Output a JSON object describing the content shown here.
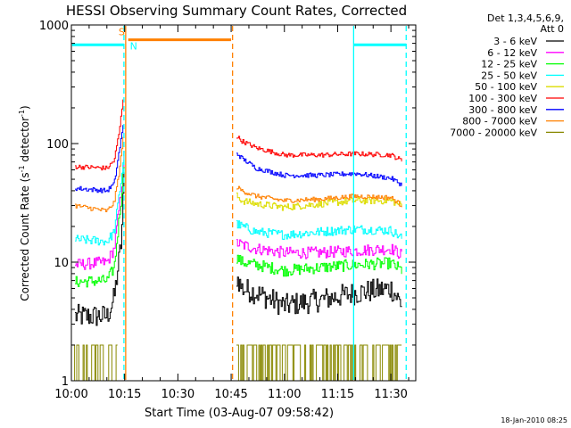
{
  "chart_data": {
    "type": "line",
    "title": "HESSI Observing Summary Count Rates, Corrected",
    "xlabel": "Start Time (03-Aug-07 09:58:42)",
    "ylabel": "Corrected Count Rate (s",
    "ylabel_sup1": "-1",
    "ylabel_mid": " detector",
    "ylabel_sup2": "-1",
    "ylabel_end": ")",
    "x_scale": "time (minutes since 10:00)",
    "xlim": [
      0,
      97
    ],
    "y_scale": "log",
    "ylim": [
      1,
      1000
    ],
    "x_ticks": [
      {
        "v": 0,
        "label": "10:00"
      },
      {
        "v": 15,
        "label": "10:15"
      },
      {
        "v": 30,
        "label": "10:30"
      },
      {
        "v": 45,
        "label": "10:45"
      },
      {
        "v": 60,
        "label": "11:00"
      },
      {
        "v": 75,
        "label": "11:15"
      },
      {
        "v": 90,
        "label": "11:30"
      }
    ],
    "y_ticks": [
      {
        "v": 1,
        "label": "1"
      },
      {
        "v": 10,
        "label": "10"
      },
      {
        "v": 100,
        "label": "100"
      },
      {
        "v": 1000,
        "label": "1000"
      }
    ],
    "legend": {
      "placement": "right",
      "header1": "Det 1,3,4,5,6,9,",
      "header2": "Att 0",
      "entries": [
        {
          "label": "3 - 6 keV",
          "color": "#000000"
        },
        {
          "label": "6 - 12 keV",
          "color": "#ff00ff"
        },
        {
          "label": "12 - 25 keV",
          "color": "#00ff00"
        },
        {
          "label": "25 - 50 keV",
          "color": "#00ffff"
        },
        {
          "label": "50 - 100 keV",
          "color": "#dddd00"
        },
        {
          "label": "100 - 300 keV",
          "color": "#ff0000"
        },
        {
          "label": "300 - 800 keV",
          "color": "#0000ff"
        },
        {
          "label": "800 - 7000 keV",
          "color": "#ff8000"
        },
        {
          "label": "7000 - 20000 keV",
          "color": "#888800"
        }
      ]
    },
    "series": [
      {
        "name": "3 - 6 keV",
        "color": "#000000",
        "jitter": 0.1,
        "segments": [
          {
            "x": [
              1,
              10,
              12,
              14,
              15
            ],
            "y": [
              3.5,
              3.5,
              5,
              15,
              70
            ]
          },
          {
            "x": [
              46.5,
              48,
              52,
              60,
              70,
              80,
              90,
              93
            ],
            "y": [
              7.5,
              6,
              5.5,
              4.3,
              4.8,
              5.5,
              6,
              4.4
            ]
          }
        ]
      },
      {
        "name": "6 - 12 keV",
        "color": "#ff00ff",
        "jitter": 0.05,
        "segments": [
          {
            "x": [
              1,
              10,
              12,
              14,
              15
            ],
            "y": [
              9.5,
              10,
              13,
              40,
              90
            ]
          },
          {
            "x": [
              46.5,
              48,
              52,
              60,
              70,
              80,
              90,
              93
            ],
            "y": [
              14.5,
              14,
              13,
              12,
              12,
              12.5,
              13,
              11.5
            ]
          }
        ]
      },
      {
        "name": "12 - 25 keV",
        "color": "#00ff00",
        "jitter": 0.05,
        "segments": [
          {
            "x": [
              1,
              10,
              12,
              14,
              15
            ],
            "y": [
              6.8,
              7,
              9,
              35,
              80
            ]
          },
          {
            "x": [
              46.5,
              48,
              52,
              60,
              70,
              80,
              90,
              93
            ],
            "y": [
              11,
              10,
              9.5,
              8.5,
              9,
              9.5,
              9.8,
              8.5
            ]
          }
        ]
      },
      {
        "name": "25 - 50 keV",
        "color": "#00ffff",
        "jitter": 0.04,
        "segments": [
          {
            "x": [
              1,
              10,
              12,
              14,
              15
            ],
            "y": [
              15.5,
              15,
              18,
              50,
              100
            ]
          },
          {
            "x": [
              46.5,
              48,
              52,
              60,
              70,
              80,
              90,
              93
            ],
            "y": [
              21,
              20,
              18,
              17,
              18,
              19,
              18.5,
              16
            ]
          }
        ]
      },
      {
        "name": "50 - 100 keV",
        "color": "#dddd00",
        "jitter": 0.03,
        "segments": [
          {
            "x": [
              46.5,
              48,
              52,
              60,
              70,
              80,
              90,
              93
            ],
            "y": [
              36,
              33,
              31,
              29,
              31,
              33,
              33,
              30
            ]
          }
        ]
      },
      {
        "name": "100 - 300 keV",
        "color": "#ff0000",
        "jitter": 0.02,
        "segments": [
          {
            "x": [
              1,
              10,
              12,
              13.5,
              14.5
            ],
            "y": [
              64,
              62,
              72,
              130,
              240
            ]
          },
          {
            "x": [
              46.5,
              48,
              52,
              60,
              70,
              80,
              90,
              93
            ],
            "y": [
              115,
              105,
              92,
              80,
              80,
              82,
              80,
              72
            ]
          }
        ]
      },
      {
        "name": "300 - 800 keV",
        "color": "#0000ff",
        "jitter": 0.02,
        "segments": [
          {
            "x": [
              1,
              10,
              12,
              13.5,
              14.5
            ],
            "y": [
              42,
              40,
              46,
              90,
              140
            ]
          },
          {
            "x": [
              46.5,
              48,
              52,
              60,
              70,
              80,
              90,
              93
            ],
            "y": [
              83,
              75,
              62,
              54,
              54,
              56,
              51,
              45
            ]
          }
        ]
      },
      {
        "name": "800 - 7000 keV",
        "color": "#ff8000",
        "jitter": 0.02,
        "segments": [
          {
            "x": [
              1,
              10,
              12,
              13.5,
              14.5
            ],
            "y": [
              30,
              27,
              32,
              60,
              110
            ]
          },
          {
            "x": [
              46.5,
              48,
              52,
              60,
              70,
              80,
              90,
              93
            ],
            "y": [
              43,
              40,
              36,
              33,
              34,
              36,
              35,
              30
            ]
          }
        ]
      },
      {
        "name": "7000 - 20000 keV",
        "color": "#888800",
        "jitter": 0,
        "binary": true,
        "levels": [
          1,
          2
        ],
        "segments": [
          {
            "x": [
              0,
              13
            ],
            "y": [
              2,
              2
            ]
          },
          {
            "x": [
              46.5,
              93
            ],
            "y": [
              2,
              2
            ]
          }
        ]
      }
    ],
    "annotations": [
      {
        "type": "vline",
        "x": 15.3,
        "color": "#ff8000",
        "style": "solid"
      },
      {
        "type": "vline",
        "x": 45.4,
        "color": "#ff8000",
        "style": "dashed"
      },
      {
        "type": "vline",
        "x": 14.8,
        "color": "#00ffff",
        "style": "dashed"
      },
      {
        "type": "vline",
        "x": 79.5,
        "color": "#00ffff",
        "style": "solid"
      },
      {
        "type": "vline",
        "x": 94.3,
        "color": "#00ffff",
        "style": "dashed"
      },
      {
        "type": "hbar",
        "x": [
          0.2,
          14.8
        ],
        "y": 680,
        "color": "#00ffff",
        "width": 3
      },
      {
        "type": "hbar",
        "x": [
          79.5,
          94.3
        ],
        "y": 680,
        "color": "#00ffff",
        "width": 3
      },
      {
        "type": "hbar",
        "x": [
          16.0,
          45.0
        ],
        "y": 750,
        "color": "#ff8000",
        "width": 3
      },
      {
        "type": "label",
        "x": 13.3,
        "y": 820,
        "text": "S",
        "color": "#ff8000"
      },
      {
        "type": "label",
        "x": 16.5,
        "y": 620,
        "text": "N",
        "color": "#00ffff"
      }
    ],
    "grid": false
  },
  "footer": {
    "timestamp": "18-Jan-2010 08:25"
  }
}
